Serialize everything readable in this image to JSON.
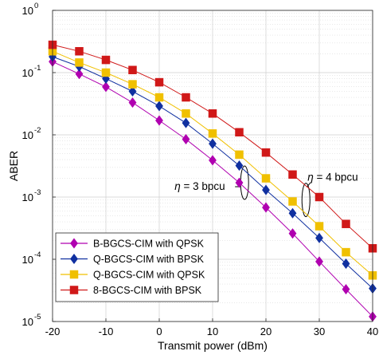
{
  "chart_data": {
    "type": "line",
    "xlabel": "Transmit power (dBm)",
    "ylabel": "ABER",
    "xlim": [
      -20,
      40
    ],
    "ylim": [
      1e-05,
      1
    ],
    "yscale": "log",
    "grid": true,
    "legend_position": "bottom-left",
    "xticks": [
      -20,
      -10,
      0,
      10,
      20,
      30,
      40
    ],
    "xtick_labels": [
      "-20",
      "-10",
      "0",
      "10",
      "20",
      "30",
      "40"
    ],
    "yticks": [
      {
        "value": 1,
        "base": "10",
        "exp": "0"
      },
      {
        "value": 0.1,
        "base": "10",
        "exp": "-1"
      },
      {
        "value": 0.01,
        "base": "10",
        "exp": "-2"
      },
      {
        "value": 0.001,
        "base": "10",
        "exp": "-3"
      },
      {
        "value": 0.0001,
        "base": "10",
        "exp": "-4"
      },
      {
        "value": 1e-05,
        "base": "10",
        "exp": "-5"
      }
    ],
    "x": [
      -20,
      -15,
      -10,
      -5,
      0,
      5,
      10,
      15,
      20,
      25,
      30,
      35,
      40
    ],
    "series": [
      {
        "name": "B-BGCS-CIM with QPSK",
        "color": "#b000b0",
        "marker": "diamond",
        "values": [
          0.15,
          0.095,
          0.059,
          0.033,
          0.017,
          0.0085,
          0.0039,
          0.0017,
          0.00068,
          0.00026,
          9.2e-05,
          3.3e-05,
          1.2e-05
        ]
      },
      {
        "name": "Q-BGCS-CIM with BPSK",
        "color": "#1030a0",
        "marker": "diamond",
        "values": [
          0.18,
          0.125,
          0.08,
          0.05,
          0.029,
          0.0155,
          0.0072,
          0.0032,
          0.0013,
          0.00055,
          0.00022,
          8.5e-05,
          3.4e-05
        ]
      },
      {
        "name": "Q-BGCS-CIM with QPSK",
        "color": "#f0c000",
        "marker": "square",
        "values": [
          0.22,
          0.145,
          0.1,
          0.065,
          0.04,
          0.022,
          0.0105,
          0.0048,
          0.002,
          0.00085,
          0.00034,
          0.00013,
          5.5e-05
        ]
      },
      {
        "name": "8-BGCS-CIM with BPSK",
        "color": "#d01818",
        "marker": "square",
        "values": [
          0.28,
          0.22,
          0.16,
          0.11,
          0.07,
          0.04,
          0.022,
          0.011,
          0.0052,
          0.0023,
          0.001,
          0.00037,
          0.00015
        ]
      }
    ],
    "annotations": [
      {
        "symbol": "η",
        "text": " = 3 bpcu",
        "target_x": 16,
        "target_y": 0.0017
      },
      {
        "symbol": "η",
        "text": " = 4 bpcu",
        "target_x": 27.5,
        "target_y": 0.0009
      }
    ]
  }
}
